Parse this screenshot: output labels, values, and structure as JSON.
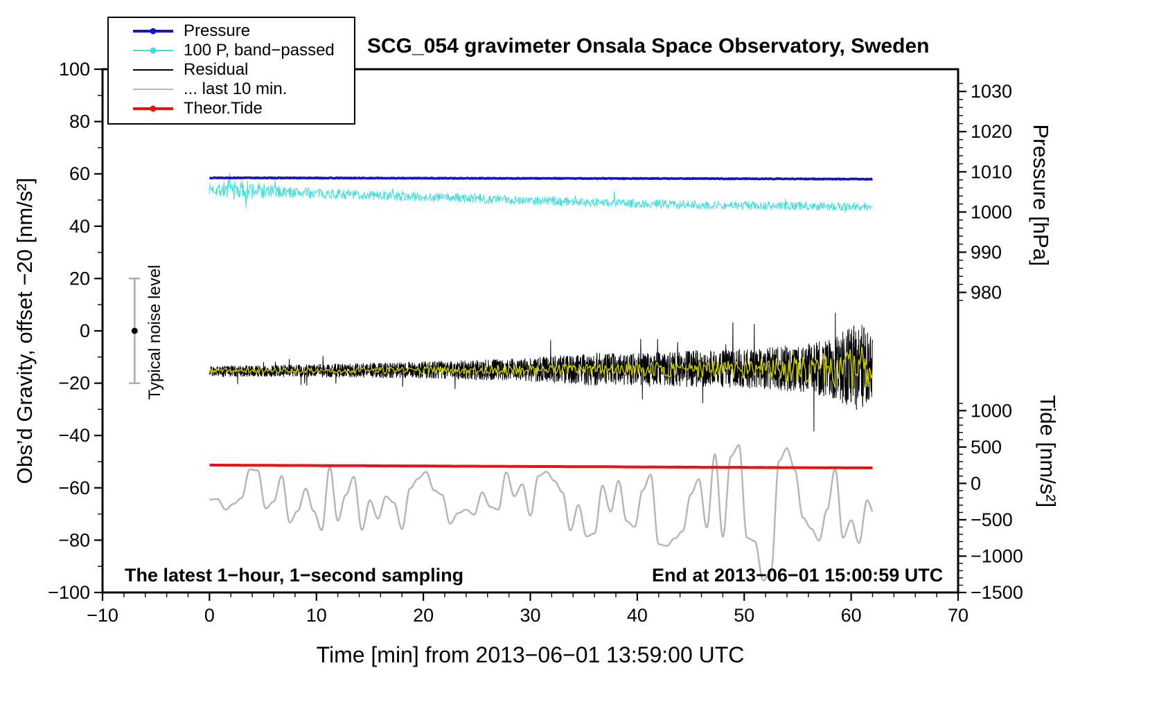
{
  "chart_data": {
    "type": "line",
    "title": "SCG_054 gravimeter Onsala Space Observatory, Sweden",
    "xlabel": "Time [min] from 2013−06−01 13:59:00 UTC",
    "ylabel_left": "Obs’d Gravity, offset −20 [nm/s²]",
    "ylabel_right_top": "Pressure [hPa]",
    "ylabel_right_bottom": "Tide [nm/s²]",
    "annotations": {
      "sampling_note": "The latest 1−hour, 1−second sampling",
      "end_note": "End at 2013−06−01 15:00:59 UTC",
      "noise_label": "Typical noise level"
    },
    "x_axis": {
      "range": [
        -10,
        70
      ],
      "major": 10,
      "minor": 2,
      "tick_values": [
        -10,
        0,
        10,
        20,
        30,
        40,
        50,
        60,
        70
      ],
      "tick_labels": [
        "−10",
        "0",
        "10",
        "20",
        "30",
        "40",
        "50",
        "60",
        "70"
      ]
    },
    "y_axis_left": {
      "range": [
        -100,
        100
      ],
      "major": 20,
      "minor": 10,
      "tick_values": [
        -100,
        -80,
        -60,
        -40,
        -20,
        0,
        20,
        40,
        60,
        80,
        100
      ],
      "tick_labels": [
        "−100",
        "−80",
        "−60",
        "−40",
        "−20",
        "0",
        "20",
        "40",
        "60",
        "80",
        "100"
      ]
    },
    "y_axis_pressure": {
      "units": "hPa",
      "tick_values": [
        1030,
        1020,
        1010,
        1000,
        990,
        980
      ],
      "tick_labels": [
        "1030",
        "1020",
        "1010",
        "1000",
        "990",
        "980"
      ],
      "anchors": [
        [
          1030,
          91.5
        ],
        [
          980,
          14.7
        ]
      ],
      "minor": 2,
      "minor_range": [
        978,
        1032
      ]
    },
    "y_axis_tide": {
      "units": "nm/s²",
      "tick_values": [
        1000,
        500,
        0,
        -500,
        -1000,
        -1500
      ],
      "tick_labels": [
        "1000",
        "500",
        "0",
        "−500",
        "−1000",
        "−1500"
      ],
      "anchors": [
        [
          1000,
          -30.5
        ],
        [
          -1500,
          -100
        ]
      ],
      "minor": 100,
      "minor_range": [
        -1500,
        1100
      ]
    },
    "noise_bar": {
      "x": -7,
      "center": 0,
      "half_range": 20,
      "bar_color": "#aaaaaa",
      "dot_color": "#000000"
    },
    "legend": {
      "items": [
        {
          "label": "Pressure",
          "color": "#1414cc",
          "width": 3.5,
          "dot": true
        },
        {
          "label": "100 P, band−passed",
          "color": "#3fdcdc",
          "width": 1.5,
          "dot": true
        },
        {
          "label": "Residual",
          "color": "#000000",
          "width": 2,
          "dot": false
        },
        {
          "label": "... last 10 min.",
          "color": "#b6b6b6",
          "width": 2.5,
          "dot": false
        },
        {
          "label": "Theor.Tide",
          "color": "#ee1111",
          "width": 3.5,
          "dot": true
        }
      ]
    },
    "series": [
      {
        "name": "100 P, band−passed",
        "color": "#3fdcdc",
        "width": 1,
        "seed": 7,
        "x_start": 0,
        "x_end": 62,
        "step": 0.05,
        "noise_type": "white",
        "spike_prob": 0.012,
        "spike_gain": 2.6,
        "baseline": [
          [
            0,
            54.3
          ],
          [
            4,
            53.6
          ],
          [
            8,
            52.9
          ],
          [
            14,
            52.0
          ],
          [
            20,
            51.2
          ],
          [
            26,
            50.4
          ],
          [
            32,
            49.7
          ],
          [
            38,
            48.9
          ],
          [
            44,
            48.3
          ],
          [
            50,
            47.9
          ],
          [
            56,
            47.7
          ],
          [
            62,
            47.5
          ]
        ],
        "noise_amp": [
          [
            0,
            2.0
          ],
          [
            1.5,
            3.8
          ],
          [
            4,
            3.8
          ],
          [
            6,
            2.4
          ],
          [
            10,
            1.9
          ],
          [
            62,
            1.6
          ]
        ]
      },
      {
        "name": "Pressure",
        "color": "#1414cc",
        "width": 3.5,
        "seed": 13,
        "x_start": 0,
        "x_end": 62,
        "step": 0.05,
        "noise_type": "white",
        "baseline": [
          [
            0,
            58.5
          ],
          [
            25,
            58.3
          ],
          [
            45,
            58.2
          ],
          [
            62,
            58.0
          ]
        ],
        "noise_amp": [
          [
            0,
            0.14
          ],
          [
            62,
            0.14
          ]
        ]
      },
      {
        "name": "... last 10 min.",
        "color": "#b6b6b6",
        "width": 2.5,
        "seed": 21,
        "x_start": 0,
        "x_end": 62,
        "step": 0.06,
        "noise_type": "smooth",
        "knot": 0.75,
        "baseline": [
          [
            0,
            -63
          ],
          [
            20,
            -65
          ],
          [
            40,
            -66
          ],
          [
            62,
            -67
          ]
        ],
        "noise_amp": [
          [
            0,
            11
          ],
          [
            5,
            14
          ],
          [
            9,
            16
          ],
          [
            14,
            13
          ],
          [
            20,
            14
          ],
          [
            26,
            13
          ],
          [
            32,
            14
          ],
          [
            38,
            15
          ],
          [
            43,
            17
          ],
          [
            47,
            20
          ],
          [
            50,
            25
          ],
          [
            52,
            30
          ],
          [
            54,
            34
          ],
          [
            56,
            24
          ],
          [
            59,
            25
          ],
          [
            62,
            18
          ]
        ]
      },
      {
        "name": "Residual",
        "color": "#000000",
        "width": 1,
        "seed": 29,
        "x_start": 0,
        "x_end": 62,
        "step": 0.02,
        "noise_type": "white",
        "spike_prob": 0.012,
        "spike_gain": 2.4,
        "baseline": [
          [
            0,
            -15.5
          ],
          [
            20,
            -15.0
          ],
          [
            40,
            -14.6
          ],
          [
            62,
            -14.2
          ]
        ],
        "noise_amp": [
          [
            0,
            2.0
          ],
          [
            8,
            2.3
          ],
          [
            15,
            2.8
          ],
          [
            22,
            3.4
          ],
          [
            28,
            4.2
          ],
          [
            33,
            5.3
          ],
          [
            36,
            6.2
          ],
          [
            40,
            6.0
          ],
          [
            44,
            6.8
          ],
          [
            48,
            7.2
          ],
          [
            52,
            8.0
          ],
          [
            55,
            9.0
          ],
          [
            58,
            11.0
          ],
          [
            60,
            16.0
          ],
          [
            61,
            17.0
          ],
          [
            62,
            11.0
          ]
        ]
      },
      {
        "name": "Residual, smoothed",
        "color": "#cccc00",
        "width": 1.4,
        "seed": 37,
        "x_start": 0,
        "x_end": 62,
        "step": 0.03,
        "noise_type": "smooth",
        "knot": 0.1,
        "baseline": [
          [
            0,
            -15.3
          ],
          [
            30,
            -14.9
          ],
          [
            62,
            -14.6
          ]
        ],
        "noise_amp": [
          [
            0,
            0.9
          ],
          [
            12,
            1.1
          ],
          [
            22,
            1.5
          ],
          [
            32,
            2.1
          ],
          [
            40,
            2.6
          ],
          [
            46,
            3.2
          ],
          [
            50,
            3.8
          ],
          [
            54,
            4.6
          ],
          [
            57,
            6.0
          ],
          [
            59,
            7.5
          ],
          [
            61,
            8.5
          ],
          [
            62,
            6.5
          ]
        ]
      },
      {
        "name": "Theor.Tide",
        "color": "#ee1111",
        "width": 4,
        "seed": 43,
        "x_start": 0,
        "x_end": 62,
        "step": 0.5,
        "noise_type": "white",
        "baseline": [
          [
            0,
            -51.3
          ],
          [
            62,
            -52.4
          ]
        ],
        "noise_amp": [
          [
            0,
            0.03
          ],
          [
            62,
            0.03
          ]
        ]
      }
    ]
  }
}
